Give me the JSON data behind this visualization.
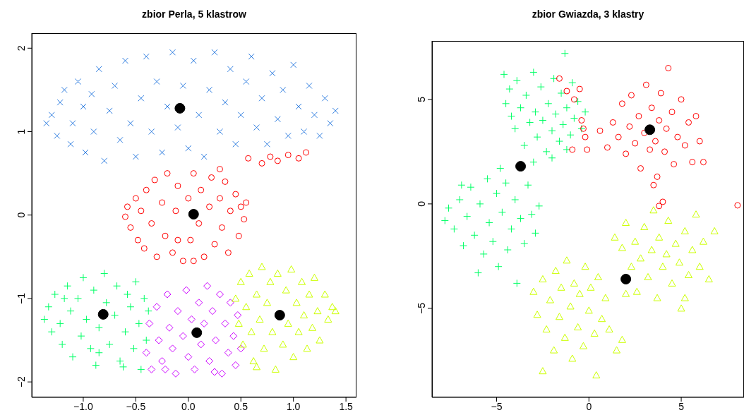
{
  "chart_data": [
    {
      "type": "scatter",
      "title": "zbior Perla, 5 klastrow",
      "xlim": [
        -1.49,
        1.6
      ],
      "ylim": [
        -2.185,
        2.18
      ],
      "xticks": [
        {
          "value": -1,
          "label": "−1.0"
        },
        {
          "value": -0.5,
          "label": "−0.5"
        },
        {
          "value": 0,
          "label": "0.0"
        },
        {
          "value": 0.5,
          "label": "0.5"
        },
        {
          "value": 1,
          "label": "1.0"
        },
        {
          "value": 1.5,
          "label": "1.5"
        }
      ],
      "yticks": [
        {
          "value": -2,
          "label": "−2"
        },
        {
          "value": -1,
          "label": "−1"
        },
        0,
        1,
        2
      ],
      "series": [
        {
          "color": "#2e7de0",
          "marker": "x",
          "x": [
            -1.35,
            -1.3,
            -1.25,
            -1.22,
            -1.18,
            -1.12,
            -1.1,
            -1.05,
            -1.0,
            -0.98,
            -0.92,
            -0.9,
            -0.85,
            -0.8,
            -0.75,
            -0.7,
            -0.65,
            -0.6,
            -0.55,
            -0.5,
            -0.45,
            -0.4,
            -0.35,
            -0.3,
            -0.25,
            -0.2,
            -0.15,
            -0.1,
            -0.05,
            0.0,
            0.05,
            0.1,
            0.15,
            0.2,
            0.25,
            0.3,
            0.35,
            0.4,
            0.45,
            0.5,
            0.55,
            0.6,
            0.65,
            0.7,
            0.75,
            0.8,
            0.85,
            0.9,
            0.95,
            1.0,
            1.05,
            1.1,
            1.15,
            1.2,
            1.25,
            1.3,
            1.35,
            1.4
          ],
          "values": [
            1.1,
            1.2,
            0.95,
            1.35,
            1.5,
            0.85,
            1.1,
            1.6,
            1.3,
            0.75,
            1.45,
            1.0,
            1.75,
            0.65,
            1.25,
            1.55,
            0.9,
            1.85,
            1.1,
            0.7,
            1.4,
            1.9,
            1.0,
            1.6,
            0.75,
            1.3,
            1.95,
            1.05,
            1.55,
            0.8,
            1.85,
            1.2,
            0.7,
            1.5,
            1.95,
            1.0,
            1.35,
            1.75,
            0.85,
            1.2,
            1.6,
            1.9,
            1.05,
            1.4,
            0.85,
            1.7,
            1.15,
            1.5,
            0.95,
            1.8,
            1.3,
            1.0,
            1.55,
            1.2,
            0.95,
            1.4,
            1.1,
            1.25
          ]
        },
        {
          "color": "#ff0000",
          "marker": "circle",
          "x": [
            -0.6,
            -0.58,
            -0.55,
            -0.5,
            -0.48,
            -0.45,
            -0.42,
            -0.4,
            -0.35,
            -0.32,
            -0.3,
            -0.25,
            -0.22,
            -0.2,
            -0.15,
            -0.12,
            -0.1,
            -0.05,
            0.0,
            0.02,
            0.05,
            0.1,
            0.12,
            0.15,
            0.2,
            0.22,
            0.25,
            0.3,
            0.32,
            0.35,
            0.38,
            0.4,
            0.45,
            0.48,
            0.5,
            0.53,
            0.55,
            0.3,
            -0.1,
            0.05,
            0.57,
            0.7,
            0.78,
            0.85,
            0.95,
            1.05,
            1.12
          ],
          "values": [
            -0.02,
            0.1,
            -0.15,
            0.2,
            -0.3,
            0.05,
            -0.4,
            0.3,
            -0.1,
            0.42,
            -0.5,
            0.15,
            -0.25,
            0.5,
            -0.45,
            0.05,
            0.35,
            -0.55,
            0.2,
            -0.3,
            0.5,
            -0.1,
            0.3,
            -0.5,
            0.1,
            0.45,
            -0.35,
            0.2,
            -0.15,
            0.4,
            -0.45,
            0.05,
            0.25,
            -0.25,
            0.1,
            -0.05,
            0.15,
            0.55,
            -0.3,
            -0.55,
            0.68,
            0.62,
            0.7,
            0.65,
            0.72,
            0.68,
            0.75
          ]
        },
        {
          "color": "#00ff66",
          "marker": "cross",
          "x": [
            -1.37,
            -1.33,
            -1.3,
            -1.27,
            -1.22,
            -1.2,
            -1.15,
            -1.12,
            -1.1,
            -1.05,
            -1.02,
            -1.0,
            -0.97,
            -0.93,
            -0.9,
            -0.88,
            -0.85,
            -0.8,
            -0.78,
            -0.75,
            -0.7,
            -0.68,
            -0.65,
            -0.6,
            -0.58,
            -0.55,
            -0.52,
            -0.5,
            -0.47,
            -0.45,
            -0.42,
            -0.4,
            -0.38,
            -0.62,
            -0.85,
            -1.18
          ],
          "values": [
            -1.25,
            -1.1,
            -1.4,
            -0.95,
            -1.3,
            -1.55,
            -0.85,
            -1.15,
            -1.7,
            -1.0,
            -1.45,
            -0.75,
            -1.25,
            -1.6,
            -0.9,
            -1.8,
            -1.35,
            -0.7,
            -1.05,
            -1.55,
            -1.2,
            -0.85,
            -1.75,
            -1.4,
            -0.95,
            -1.1,
            -1.6,
            -0.8,
            -1.3,
            -1.85,
            -1.0,
            -1.5,
            -1.15,
            -1.82,
            -1.65,
            -1.0
          ]
        },
        {
          "color": "#cc00ff",
          "marker": "diamond",
          "x": [
            -0.4,
            -0.37,
            -0.35,
            -0.3,
            -0.28,
            -0.25,
            -0.2,
            -0.18,
            -0.15,
            -0.12,
            -0.1,
            -0.05,
            -0.02,
            0.0,
            0.03,
            0.06,
            0.1,
            0.12,
            0.15,
            0.18,
            0.2,
            0.23,
            0.26,
            0.3,
            0.32,
            0.35,
            0.38,
            0.4,
            0.43,
            0.45,
            0.47,
            0.5,
            0.25,
            -0.22
          ],
          "values": [
            -1.65,
            -1.3,
            -1.85,
            -1.1,
            -1.5,
            -1.75,
            -0.95,
            -1.35,
            -1.6,
            -1.9,
            -1.15,
            -1.45,
            -0.9,
            -1.7,
            -1.25,
            -1.85,
            -1.05,
            -1.55,
            -1.3,
            -0.85,
            -1.75,
            -1.15,
            -1.5,
            -0.95,
            -1.9,
            -1.3,
            -1.65,
            -1.05,
            -1.45,
            -1.8,
            -1.2,
            -1.6,
            -1.88,
            -1.85
          ]
        },
        {
          "color": "#ccff00",
          "marker": "triangle",
          "x": [
            0.45,
            0.48,
            0.5,
            0.52,
            0.55,
            0.58,
            0.6,
            0.62,
            0.65,
            0.68,
            0.7,
            0.72,
            0.75,
            0.78,
            0.8,
            0.83,
            0.85,
            0.88,
            0.9,
            0.93,
            0.95,
            0.98,
            1.0,
            1.03,
            1.05,
            1.08,
            1.1,
            1.13,
            1.15,
            1.18,
            1.2,
            1.23,
            1.25,
            1.3,
            1.33,
            1.37,
            1.4,
            0.65
          ],
          "values": [
            -1.0,
            -1.3,
            -0.8,
            -1.55,
            -1.1,
            -0.7,
            -1.4,
            -1.75,
            -0.95,
            -1.25,
            -0.62,
            -1.6,
            -1.05,
            -0.8,
            -1.4,
            -1.85,
            -0.7,
            null,
            -1.55,
            -0.9,
            -1.3,
            -0.65,
            -1.7,
            -1.05,
            -1.4,
            -0.8,
            -1.2,
            -1.6,
            -0.95,
            -1.35,
            -0.75,
            -1.15,
            -1.5,
            -0.95,
            -1.25,
            -1.1,
            -1.15,
            -1.82
          ]
        },
        {
          "color": "#000000",
          "x": [
            -0.08,
            0.05,
            -0.81,
            0.08,
            0.87
          ],
          "values": [
            1.28,
            0.01,
            -1.19,
            -1.41,
            -1.2
          ]
        }
      ]
    },
    {
      "type": "scatter",
      "title": "zbior Gwiazda, 3 klastry",
      "xlim": [
        -8.5,
        8.4
      ],
      "ylim": [
        -9.26,
        7.8
      ],
      "xticks": [
        {
          "value": -5,
          "label": "−5"
        },
        0,
        5
      ],
      "yticks": [
        {
          "value": -5,
          "label": "−5"
        },
        0,
        5
      ],
      "series": [
        {
          "color": "#00ff66",
          "marker": "cross",
          "x": [
            -4.6,
            -4.5,
            -4.3,
            -4.2,
            -4.0,
            -3.9,
            -3.7,
            -3.5,
            -3.4,
            -3.2,
            -3.0,
            -2.9,
            -2.8,
            -2.6,
            -2.5,
            -2.3,
            -2.2,
            -2.0,
            -1.9,
            -1.8,
            -1.6,
            -1.5,
            -1.4,
            -1.3,
            -1.2,
            -1.0,
            -0.9,
            -0.8,
            -0.6,
            -0.4,
            -0.2,
            -3.0,
            -2.0,
            -1.2,
            -7.8,
            -7.6,
            -7.3,
            -7.0,
            -6.8,
            -6.6,
            -6.4,
            -6.2,
            -6.0,
            -5.9,
            -5.7,
            -5.5,
            -5.4,
            -5.2,
            -5.0,
            -4.9,
            -4.7,
            -4.5,
            -4.4,
            -4.2,
            -4.0,
            -3.9,
            -3.7,
            -3.5,
            -3.3,
            -3.1,
            -2.9,
            -2.7,
            -4.8,
            -6.9
          ],
          "values": [
            6.2,
            4.8,
            5.5,
            4.2,
            3.6,
            5.9,
            4.6,
            2.8,
            5.2,
            3.9,
            6.3,
            4.4,
            3.2,
            5.6,
            4.0,
            2.5,
            4.8,
            3.5,
            6.0,
            4.3,
            3.0,
            5.3,
            3.8,
            7.2,
            4.6,
            3.3,
            5.8,
            4.1,
            4.9,
            3.6,
            4.4,
            2.0,
            2.2,
            2.6,
            -0.8,
            -0.2,
            -1.2,
            0.2,
            -2.0,
            -0.6,
            0.8,
            -1.5,
            -3.3,
            0.0,
            -2.4,
            1.2,
            -0.9,
            -1.8,
            0.5,
            -3.0,
            -0.4,
            1.0,
            -2.2,
            -1.2,
            0.2,
            -3.8,
            -0.7,
            -1.9,
            0.9,
            -0.5,
            -1.4,
            -0.1,
            1.7,
            0.9
          ]
        },
        {
          "color": "#ff0000",
          "marker": "circle",
          "x": [
            0.6,
            1.0,
            1.3,
            1.6,
            1.8,
            2.0,
            2.2,
            2.3,
            2.5,
            2.7,
            2.8,
            3.0,
            3.1,
            3.3,
            3.4,
            3.6,
            3.7,
            3.8,
            3.9,
            4.1,
            4.2,
            4.3,
            4.5,
            4.6,
            4.8,
            5.0,
            5.2,
            5.4,
            5.6,
            5.8,
            6.0,
            6.2,
            3.5,
            3.8,
            4.0,
            8.05,
            -1.6,
            -1.2,
            -0.8,
            -0.5,
            -0.4,
            -0.3,
            -0.2,
            -0.9,
            -0.1
          ],
          "values": [
            3.5,
            2.7,
            3.9,
            3.2,
            4.8,
            2.4,
            3.7,
            5.2,
            2.9,
            4.2,
            1.7,
            3.4,
            5.7,
            2.6,
            4.6,
            3.0,
            1.3,
            4.0,
            5.3,
            2.5,
            3.6,
            6.5,
            4.4,
            1.9,
            3.2,
            5.0,
            2.8,
            3.9,
            2.0,
            4.2,
            3.0,
            2.0,
            0.9,
            -0.1,
            0.1,
            -0.07,
            6.0,
            5.4,
            5.0,
            5.5,
            4.0,
            3.6,
            3.2,
            2.6,
            2.6
          ]
        },
        {
          "color": "#ccff00",
          "marker": "triangle",
          "x": [
            -3.0,
            -2.8,
            -2.5,
            -2.3,
            -2.1,
            -1.9,
            -1.8,
            -1.6,
            -1.5,
            -1.3,
            -1.2,
            -1.0,
            -0.9,
            -0.8,
            -0.6,
            -0.5,
            -0.3,
            -0.2,
            0.0,
            0.1,
            0.3,
            0.4,
            0.5,
            0.7,
            0.9,
            1.1,
            -2.5,
            1.5,
            1.8,
            1.4,
            1.8,
            2.0,
            2.3,
            2.5,
            2.6,
            2.8,
            3.0,
            3.2,
            3.4,
            3.5,
            3.7,
            3.8,
            4.0,
            4.2,
            4.3,
            4.5,
            4.7,
            4.9,
            5.0,
            5.2,
            5.4,
            5.6,
            5.8,
            6.0,
            6.2,
            6.5,
            6.8,
            5.2,
            2.0
          ],
          "values": [
            -4.2,
            -5.3,
            -3.6,
            -6.0,
            -4.6,
            -7.0,
            -3.2,
            -5.4,
            -4.0,
            -6.4,
            -2.7,
            -4.9,
            -7.4,
            -3.8,
            -5.9,
            -4.3,
            -6.8,
            -3.0,
            -5.1,
            -4.0,
            -6.2,
            -8.2,
            -3.5,
            -5.5,
            -4.5,
            -6.0,
            -8.0,
            -7.0,
            -6.5,
            -1.6,
            -2.1,
            -0.9,
            -3.0,
            -1.8,
            -4.2,
            -2.6,
            -1.1,
            -3.5,
            -2.2,
            -0.3,
            -4.5,
            -1.6,
            -3.0,
            -2.4,
            -0.8,
            -3.8,
            -1.9,
            -2.8,
            -5.0,
            -1.3,
            -3.4,
            -2.2,
            -0.5,
            -3.0,
            -1.8,
            -3.6,
            -1.3,
            -4.5,
            -4.3
          ]
        },
        {
          "color": "#000000",
          "x": [
            3.3,
            -3.7,
            2.0
          ],
          "values": [
            3.55,
            1.8,
            -3.6
          ]
        }
      ]
    }
  ]
}
